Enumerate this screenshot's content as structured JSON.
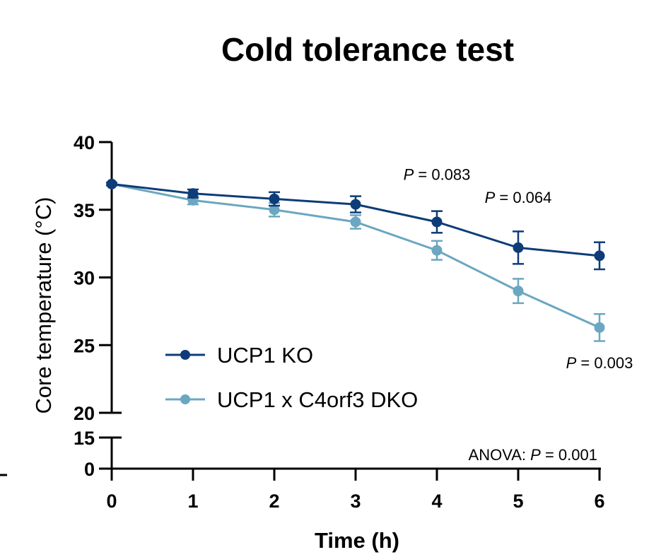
{
  "chart_data": {
    "type": "line",
    "title": "Cold tolerance test",
    "xlabel": "Time (h)",
    "ylabel": "Core temperature  (°C)",
    "x": [
      0,
      1,
      2,
      3,
      4,
      5,
      6
    ],
    "xlim": [
      0,
      6
    ],
    "x_ticks": [
      "0",
      "1",
      "2",
      "3",
      "4",
      "5",
      "6"
    ],
    "y_break": true,
    "y_segments": [
      {
        "range": [
          0,
          15
        ],
        "ticks": [
          "0",
          "15"
        ],
        "tick_values": [
          0,
          15
        ]
      },
      {
        "range": [
          20,
          40
        ],
        "ticks": [
          "20",
          "25",
          "30",
          "35",
          "40"
        ],
        "tick_values": [
          20,
          25,
          30,
          35,
          40
        ]
      }
    ],
    "series": [
      {
        "name": "UCP1 KO",
        "color": "#0d3c78",
        "values": [
          36.9,
          36.2,
          35.8,
          35.4,
          34.1,
          32.2,
          31.6
        ],
        "errors": [
          0.1,
          0.3,
          0.5,
          0.6,
          0.8,
          1.2,
          1.0
        ]
      },
      {
        "name": "UCP1 x C4orf3 DKO",
        "color": "#6ba7c0",
        "values": [
          36.9,
          35.7,
          35.0,
          34.1,
          32.0,
          29.0,
          26.3
        ],
        "errors": [
          0.1,
          0.3,
          0.5,
          0.5,
          0.7,
          0.9,
          1.0
        ]
      }
    ],
    "annotations": [
      {
        "p_label": "P",
        "text": " = 0.083",
        "x": 4,
        "y": 37.2
      },
      {
        "p_label": "P",
        "text": " = 0.064",
        "x": 5,
        "y": 35.5
      },
      {
        "p_label": "P",
        "text": " = 0.003",
        "x": 6,
        "y": 23.3
      }
    ],
    "anova": {
      "prefix": "ANOVA: ",
      "p_label": "P",
      "text": " = 0.001"
    },
    "legend_position": "lower-left"
  }
}
